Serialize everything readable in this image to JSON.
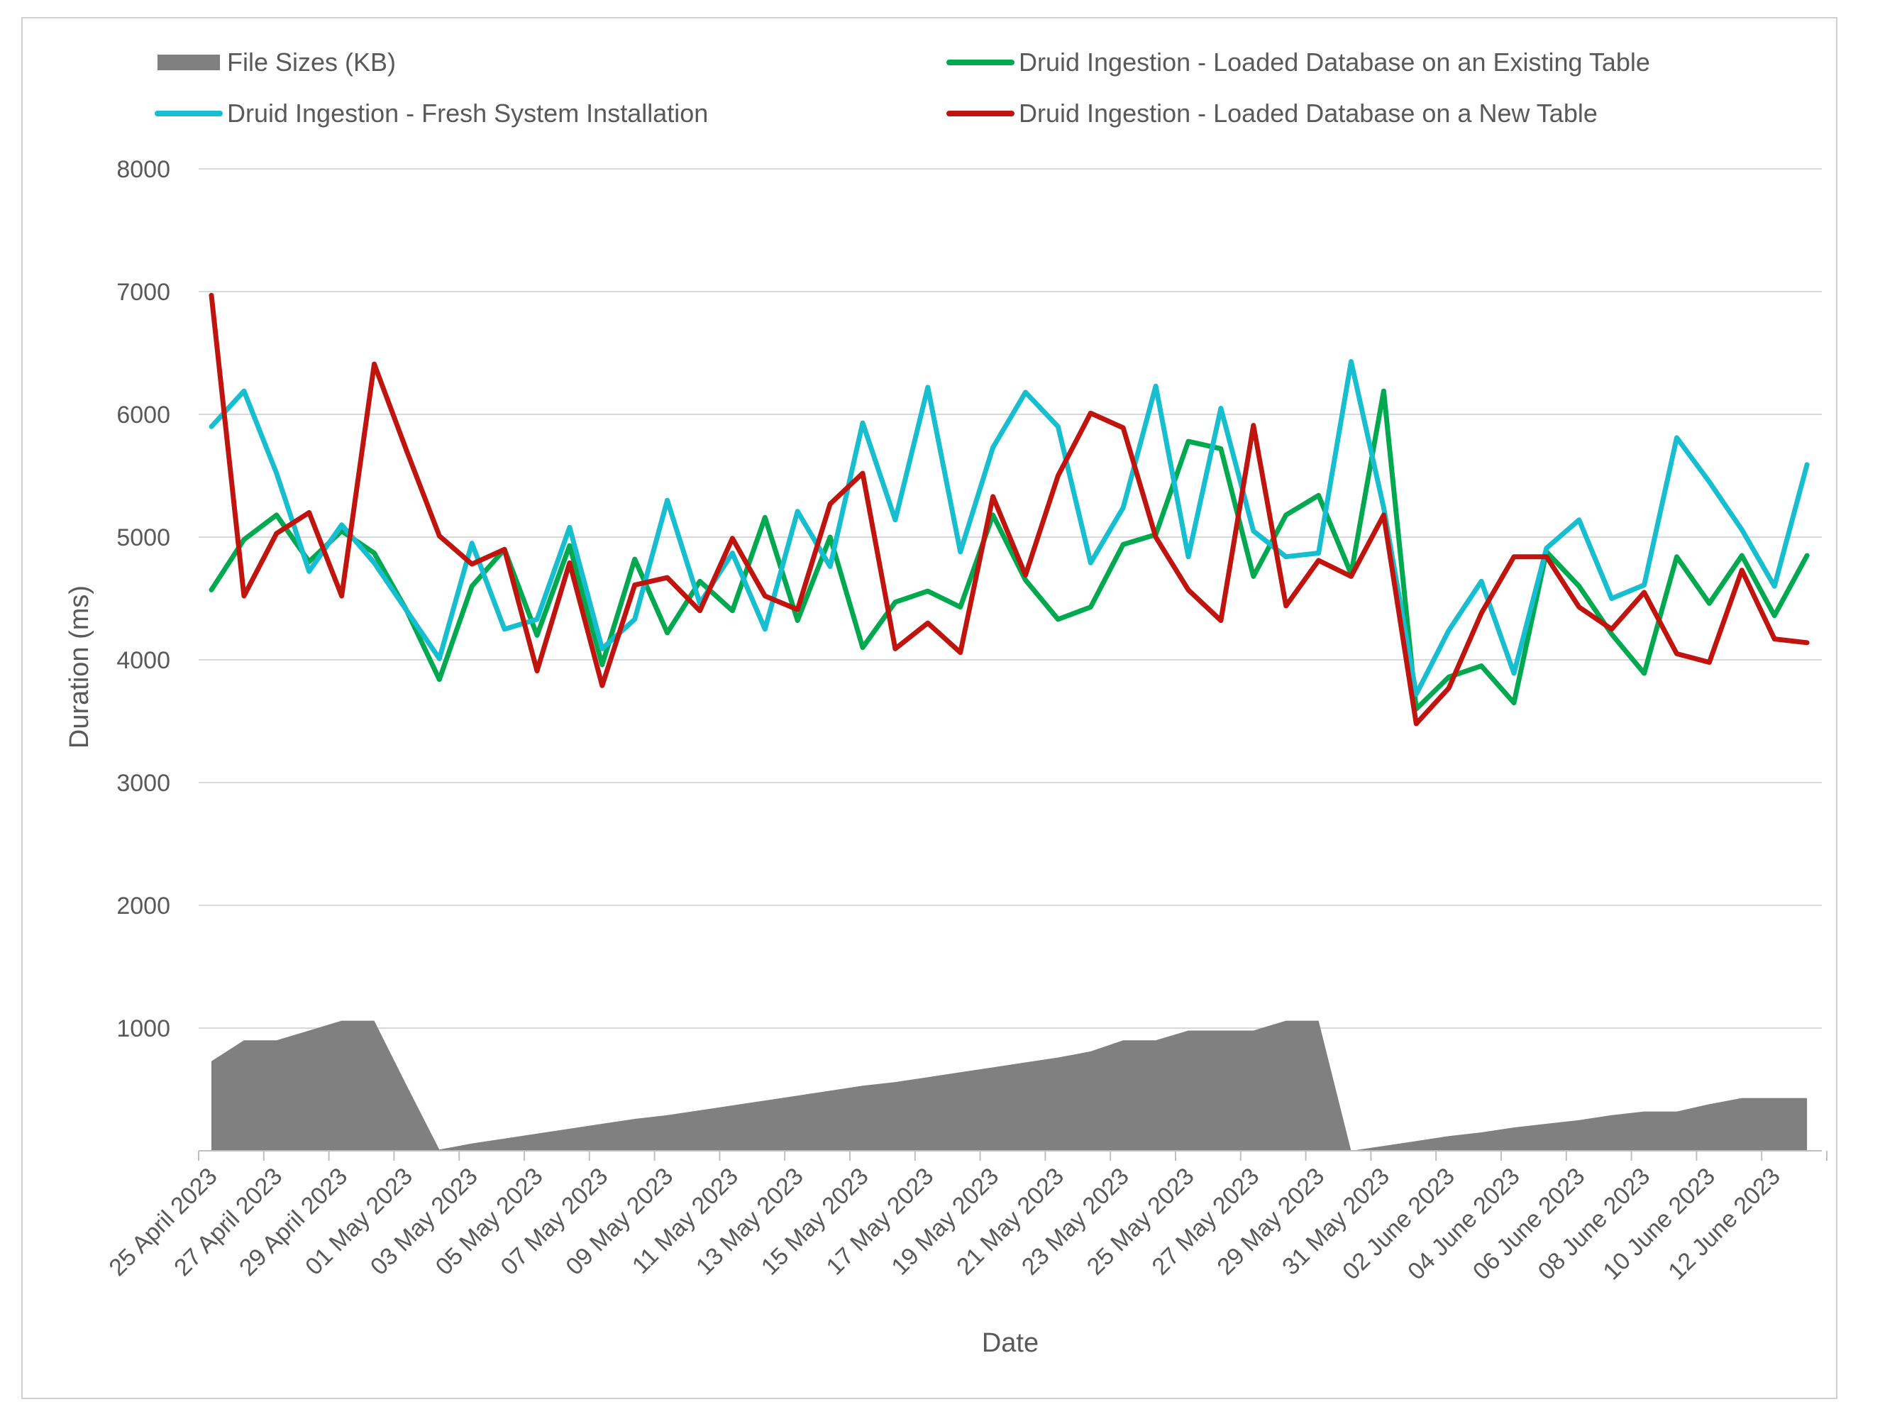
{
  "chart_data": {
    "type": "line",
    "title": "",
    "xlabel": "Date",
    "ylabel": "Duration (ms)",
    "ylim": [
      0,
      8000
    ],
    "yticks": [
      1000,
      2000,
      3000,
      4000,
      5000,
      6000,
      7000,
      8000
    ],
    "grid": true,
    "legend_position": "top",
    "x_tick_labels": [
      "25 April 2023",
      "27 April 2023",
      "29 April 2023",
      "01 May 2023",
      "03 May 2023",
      "05 May 2023",
      "07 May 2023",
      "09 May 2023",
      "11 May 2023",
      "13 May 2023",
      "15 May 2023",
      "17 May 2023",
      "19 May 2023",
      "21 May 2023",
      "23 May 2023",
      "25 May 2023",
      "27 May 2023",
      "29 May 2023",
      "31 May 2023",
      "02 June 2023",
      "04 June 2023",
      "06 June 2023",
      "08 June 2023",
      "10 June 2023",
      "12 June 2023"
    ],
    "categories": [
      "25 Apr",
      "26 Apr",
      "27 Apr",
      "28 Apr",
      "29 Apr",
      "30 Apr",
      "01 May",
      "02 May",
      "03 May",
      "04 May",
      "05 May",
      "06 May",
      "07 May",
      "08 May",
      "09 May",
      "10 May",
      "11 May",
      "12 May",
      "13 May",
      "14 May",
      "15 May",
      "16 May",
      "17 May",
      "18 May",
      "19 May",
      "20 May",
      "21 May",
      "22 May",
      "23 May",
      "24 May",
      "25 May",
      "26 May",
      "27 May",
      "28 May",
      "29 May",
      "30 May",
      "31 May",
      "01 Jun",
      "02 Jun",
      "03 Jun",
      "04 Jun",
      "05 Jun",
      "06 Jun",
      "07 Jun",
      "08 Jun",
      "09 Jun",
      "10 Jun",
      "11 Jun",
      "12 Jun",
      "13 Jun"
    ],
    "series": [
      {
        "name": "File Sizes (KB)",
        "kind": "area",
        "color": "#808080",
        "values": [
          730,
          900,
          900,
          980,
          1060,
          1060,
          530,
          10,
          60,
          100,
          140,
          180,
          220,
          260,
          290,
          330,
          370,
          410,
          450,
          490,
          530,
          560,
          600,
          640,
          680,
          720,
          760,
          810,
          900,
          900,
          980,
          980,
          980,
          1060,
          1060,
          0,
          40,
          80,
          120,
          150,
          190,
          220,
          250,
          290,
          320,
          320,
          380,
          430,
          430,
          430
        ]
      },
      {
        "name": "Druid Ingestion - Loaded Database on an Existing Table",
        "kind": "line",
        "color": "#00a94f",
        "values": [
          4570,
          4980,
          5180,
          4800,
          5050,
          4870,
          4400,
          3840,
          4600,
          4900,
          4200,
          4930,
          3960,
          4820,
          4220,
          4640,
          4400,
          5160,
          4320,
          5000,
          4100,
          4470,
          4560,
          4430,
          5180,
          4650,
          4330,
          4430,
          4940,
          5020,
          5780,
          5720,
          4680,
          5180,
          5340,
          4700,
          6190,
          3600,
          3860,
          3950,
          3650,
          4880,
          4600,
          4210,
          3890,
          4840,
          4460,
          4850,
          4360,
          4850
        ]
      },
      {
        "name": "Druid Ingestion - Fresh System Installation",
        "kind": "line",
        "color": "#17becf",
        "values": [
          5900,
          6190,
          5520,
          4720,
          5100,
          4790,
          4400,
          4010,
          4950,
          4250,
          4330,
          5080,
          4090,
          4330,
          5300,
          4460,
          4870,
          4250,
          5210,
          4760,
          5930,
          5140,
          6220,
          4880,
          5730,
          6180,
          5900,
          4790,
          5240,
          6230,
          4840,
          6050,
          5050,
          4840,
          4870,
          6430,
          5240,
          3720,
          4240,
          4640,
          3890,
          4910,
          5140,
          4500,
          4610,
          5810,
          5450,
          5060,
          4600,
          5590
        ]
      },
      {
        "name": "Druid Ingestion - Loaded Database on a New Table",
        "kind": "line",
        "color": "#c0140f",
        "values": [
          6970,
          4520,
          5030,
          5200,
          4520,
          6410,
          5700,
          5010,
          4780,
          4900,
          3910,
          4790,
          3790,
          4610,
          4670,
          4400,
          4990,
          4520,
          4410,
          5270,
          5520,
          4090,
          4300,
          4060,
          5330,
          4690,
          5500,
          6010,
          5890,
          5000,
          4570,
          4320,
          5910,
          4440,
          4810,
          4680,
          5180,
          3480,
          3770,
          4380,
          4840,
          4840,
          4430,
          4250,
          4550,
          4050,
          3980,
          4730,
          4170,
          4140
        ]
      }
    ],
    "legend": [
      {
        "label": "File Sizes (KB)",
        "series_index": 0,
        "style": "bar"
      },
      {
        "label": "Druid Ingestion - Loaded Database on an Existing Table",
        "series_index": 1,
        "style": "line"
      },
      {
        "label": "Druid Ingestion - Fresh System Installation",
        "series_index": 2,
        "style": "line"
      },
      {
        "label": "Druid Ingestion - Loaded Database on a New Table",
        "series_index": 3,
        "style": "line"
      }
    ]
  }
}
